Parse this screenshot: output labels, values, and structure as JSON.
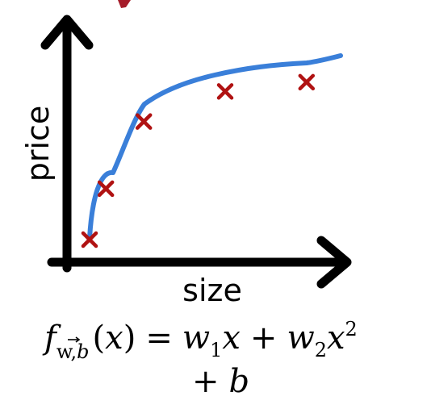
{
  "axes": {
    "x_label": "size",
    "y_label": "price"
  },
  "colors": {
    "axis": "#000000",
    "curve": "#3a7fd9",
    "point": "#b01212",
    "header_fragment": "#a51c2a"
  },
  "data_points": [
    {
      "size": 1.0,
      "price": 1.0
    },
    {
      "size": 1.6,
      "price": 3.2
    },
    {
      "size": 3.0,
      "price": 6.1
    },
    {
      "size": 6.0,
      "price": 7.4
    },
    {
      "size": 9.0,
      "price": 7.8
    }
  ],
  "curve": {
    "model": "quadratic",
    "description": "smooth increasing fitted curve through the points"
  },
  "formula": {
    "f": "f",
    "w_vec": "w",
    "subscript_sep": ",",
    "b_sub": "b",
    "open_paren": "(",
    "x_arg": "x",
    "close_paren": ")",
    "equals": "=",
    "w1": "w",
    "w1_sub": "1",
    "x1": "x",
    "plus1": "+",
    "w2": "w",
    "w2_sub": "2",
    "x2": "x",
    "x2_exp": "2",
    "plus2": "+",
    "b": "b"
  }
}
